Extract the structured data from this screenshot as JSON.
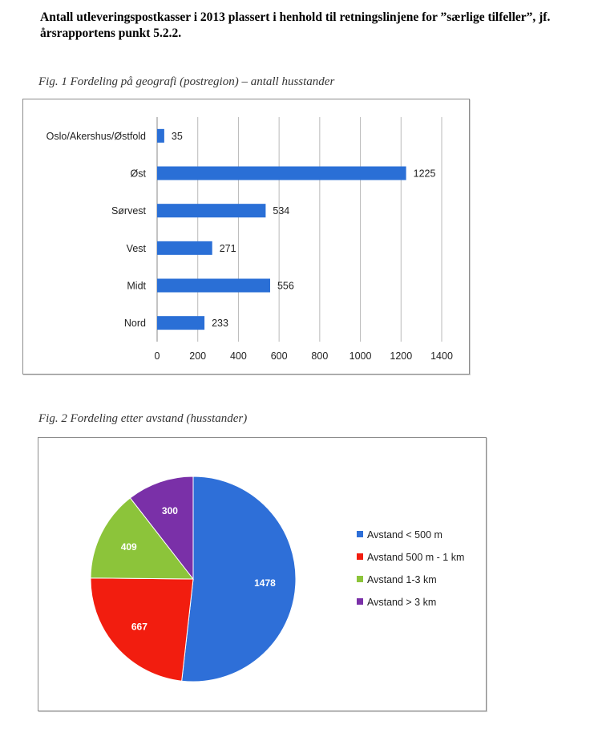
{
  "page": {
    "heading": "Antall utleveringspostkasser i 2013 plassert i henhold til retningslinjene for ”særlige tilfeller”, jf. årsrapportens punkt 5.2.2."
  },
  "chart_data": [
    {
      "type": "bar",
      "orientation": "horizontal",
      "title": "Fig. 1 Fordeling på geografi (postregion) – antall husstander",
      "categories": [
        "Oslo/Akershus/Østfold",
        "Øst",
        "Sørvest",
        "Vest",
        "Midt",
        "Nord"
      ],
      "values": [
        35,
        1225,
        534,
        271,
        556,
        233
      ],
      "data_labels": [
        "35",
        "1225",
        "534",
        "271",
        "556",
        "233"
      ],
      "xlim": [
        0,
        1400
      ],
      "xticks": [
        0,
        200,
        400,
        600,
        800,
        1000,
        1200,
        1400
      ],
      "xtick_labels": [
        "0",
        "200",
        "400",
        "600",
        "800",
        "1000",
        "1200",
        "1400"
      ],
      "grid": "vertical",
      "color": "#2a6fd6"
    },
    {
      "type": "pie",
      "title": "Fig. 2 Fordeling etter avstand (husstander)",
      "labels": [
        "Avstand < 500 m",
        "Avstand 500 m - 1 km",
        "Avstand 1-3 km",
        "Avstand > 3 km"
      ],
      "values": [
        1478,
        667,
        409,
        300
      ],
      "data_labels": [
        "1478",
        "667",
        "409",
        "300"
      ],
      "colors": [
        "#2e6fd8",
        "#f21d0f",
        "#8cc43a",
        "#7a30a8"
      ],
      "legend": "right"
    }
  ]
}
